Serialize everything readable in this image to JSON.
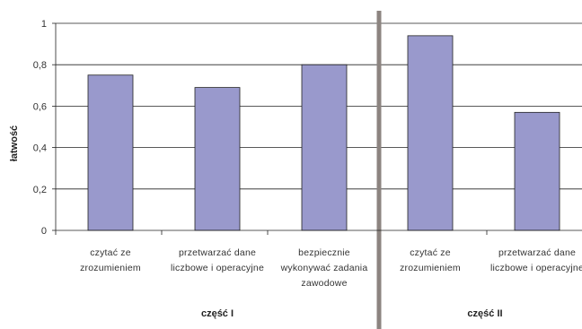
{
  "chart_data": {
    "type": "bar",
    "ylabel": "łatwość",
    "ylim": [
      0,
      1
    ],
    "yticks": [
      "0",
      "0,2",
      "0,4",
      "0,6",
      "0,8",
      "1"
    ],
    "grid": true,
    "bar_color": "#9999cc",
    "divider_color": "#8c8480",
    "parts": [
      "część I",
      "część II"
    ],
    "categories": [
      {
        "lines": [
          "czytać ze",
          "zrozumieniem"
        ],
        "part": "część I"
      },
      {
        "lines": [
          "przetwarzać dane",
          "liczbowe i operacyjne"
        ],
        "part": "część I"
      },
      {
        "lines": [
          "bezpiecznie",
          "wykonywać zadania",
          "zawodowe"
        ],
        "part": "część I"
      },
      {
        "lines": [
          "czytać ze",
          "zrozumieniem"
        ],
        "part": "część II"
      },
      {
        "lines": [
          "przetwarzać dane",
          "liczbowe i operacyjne"
        ],
        "part": "część II"
      }
    ],
    "values": [
      0.75,
      0.69,
      0.8,
      0.94,
      0.57
    ]
  }
}
